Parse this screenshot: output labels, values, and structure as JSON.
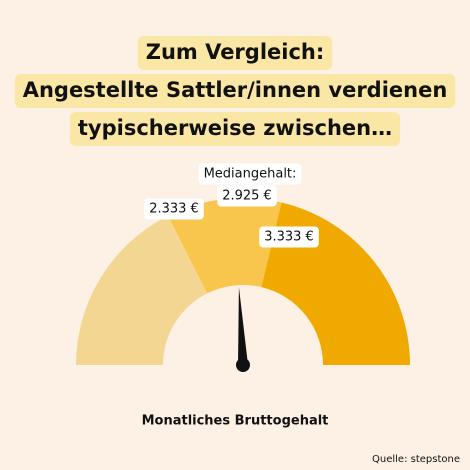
{
  "chart_data": {
    "type": "gauge",
    "title": [
      "Zum Vergleich:",
      "Angestellte Sattler/innen verdienen",
      "typischerweise zwischen…"
    ],
    "median_label": "Mediangehalt:",
    "values": [
      2333,
      2925,
      3333
    ],
    "value_labels": [
      "2.333 €",
      "2.925 €",
      "3.333 €"
    ],
    "ylim": [
      750,
      5250
    ],
    "colors": [
      "#f3d692",
      "#f8c64c",
      "#f0a900"
    ],
    "needle_color": "#111111",
    "x_label": "Monatliches Bruttogehalt",
    "source": "Quelle: stepstone"
  }
}
